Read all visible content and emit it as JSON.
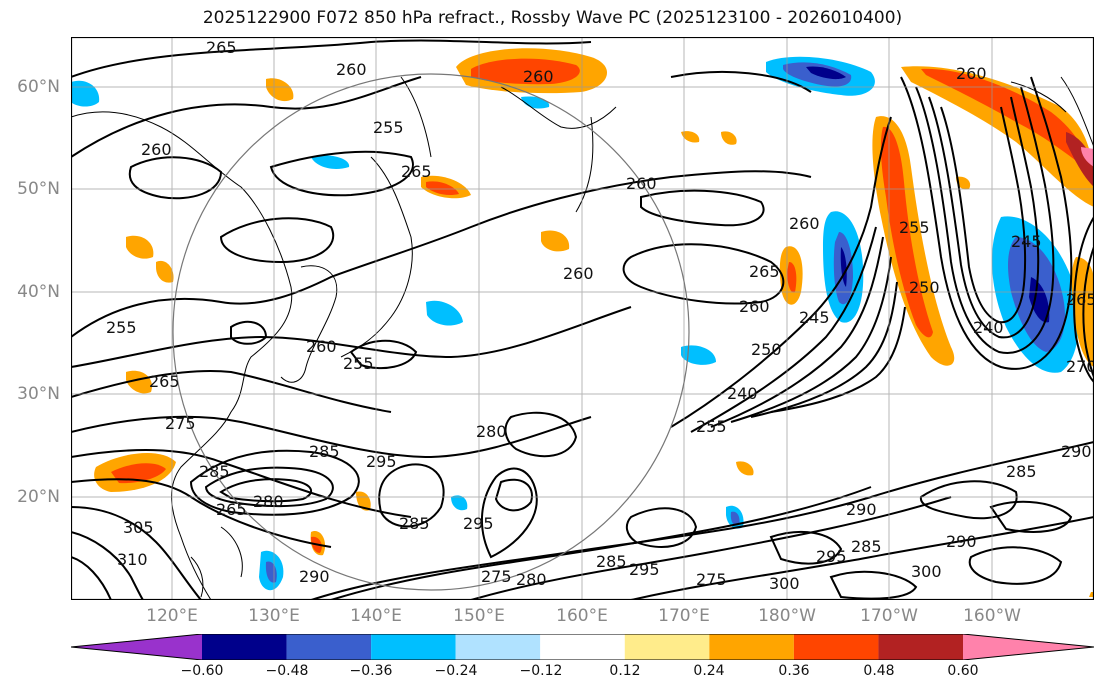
{
  "title": "2025122900 F072 850 hPa refract., Rossby Wave PC (2025123100 - 2026010400)",
  "lat_labels": [
    "60°N",
    "50°N",
    "40°N",
    "30°N",
    "20°N"
  ],
  "lon_labels": [
    "120°E",
    "130°E",
    "140°E",
    "150°E",
    "160°E",
    "170°E",
    "180°W",
    "170°W",
    "160°W"
  ],
  "colorbar": {
    "ticks": [
      "−0.60",
      "−0.48",
      "−0.36",
      "−0.24",
      "−0.12",
      "0.12",
      "0.24",
      "0.36",
      "0.48",
      "0.60"
    ],
    "colors": [
      "#9932cc",
      "#00008b",
      "#3a5fcd",
      "#00bfff",
      "#b0e2ff",
      "#ffffff",
      "#ffec8b",
      "#ffa500",
      "#ff4500",
      "#b22222",
      "#ff82ab"
    ]
  },
  "contour_labels": [
    "265",
    "260",
    "260",
    "255",
    "260",
    "265",
    "260",
    "260",
    "260",
    "260",
    "255",
    "250",
    "245",
    "265",
    "260",
    "245",
    "250",
    "240",
    "255",
    "240",
    "270",
    "265",
    "255",
    "260",
    "255",
    "265",
    "275",
    "280",
    "285",
    "295",
    "285",
    "285",
    "295",
    "280",
    "265",
    "305",
    "310",
    "290",
    "275",
    "280",
    "295",
    "285",
    "275",
    "300",
    "295",
    "285",
    "300",
    "290",
    "285",
    "290",
    "290"
  ]
}
